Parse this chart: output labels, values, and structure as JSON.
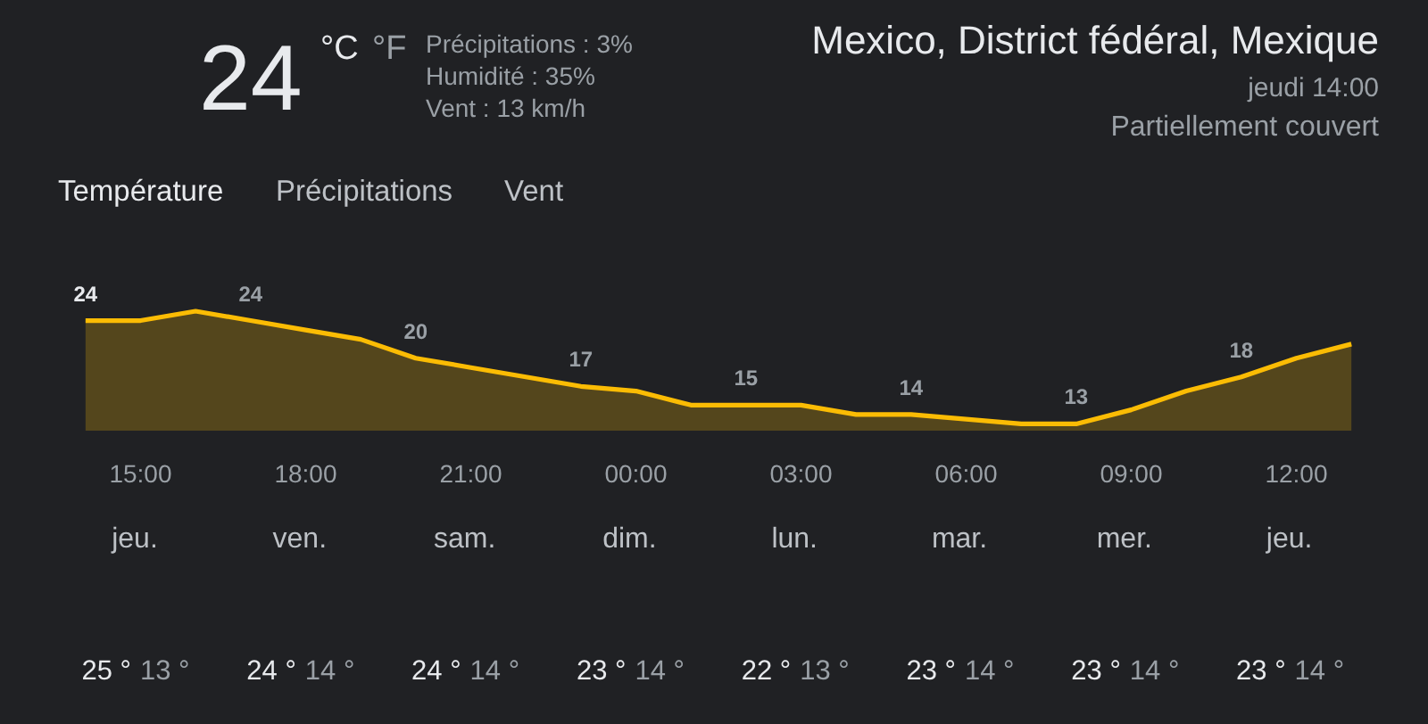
{
  "chart_data": {
    "type": "area",
    "title": "Mexico, District fédéral, Mexique",
    "subtitle": "jeudi 14:00",
    "annotations": [
      "Partiellement couvert",
      "24",
      "°C",
      "°F",
      "Précipitations : 3%",
      "Humidité : 35%",
      "Vent : 13 km/h",
      "Température",
      "Précipitations",
      "Vent",
      "jeu.",
      "25 °",
      "13 °",
      "ven.",
      "24 °",
      "14 °",
      "sam.",
      "24 °",
      "14 °",
      "dim.",
      "23 °",
      "14 °",
      "lun.",
      "22 °",
      "13 °",
      "mar.",
      "23 °",
      "14 °",
      "mer.",
      "23 °",
      "14 °",
      "jeu.",
      "23 °",
      "14 °"
    ],
    "categories": [
      null,
      "15:00",
      null,
      null,
      "18:00",
      null,
      null,
      "21:00",
      null,
      null,
      "00:00",
      null,
      null,
      "03:00",
      null,
      null,
      "06:00",
      null,
      null,
      "09:00",
      null,
      null,
      "12:00",
      null
    ],
    "values": [
      24,
      24,
      25,
      24,
      23,
      22,
      20,
      19,
      18,
      17,
      16.5,
      15,
      15,
      15,
      14,
      14,
      13.5,
      13,
      13,
      14.5,
      16.5,
      18,
      20,
      21.5
    ],
    "value_labels": [
      "24",
      null,
      null,
      "24",
      null,
      null,
      "20",
      null,
      null,
      "17",
      null,
      null,
      "15",
      null,
      null,
      "14",
      null,
      null,
      "13",
      null,
      null,
      "18",
      null,
      null
    ],
    "color": "#fbbc04",
    "grid": false,
    "tick_labels": "x"
  }
}
